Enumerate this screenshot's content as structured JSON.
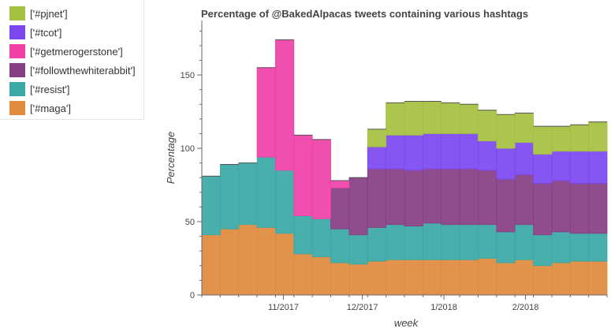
{
  "chart_data": {
    "type": "area",
    "title": "Percentage of @BakedAlpacas tweets containing various hashtags",
    "xlabel": "week",
    "ylabel": "Percentage",
    "ylim": [
      0,
      185
    ],
    "yticks": [
      0,
      50,
      100,
      150
    ],
    "xtick_labels": [
      "11/2017",
      "12/2017",
      "1/2018",
      "2/2018"
    ],
    "legend_position": "top-left",
    "stacked": true,
    "step": true,
    "x_week_starts": [
      "2017-10-01",
      "2017-10-08",
      "2017-10-15",
      "2017-10-22",
      "2017-10-29",
      "2017-11-05",
      "2017-11-12",
      "2017-11-19",
      "2017-11-26",
      "2017-12-03",
      "2017-12-10",
      "2017-12-17",
      "2017-12-24",
      "2017-12-31",
      "2018-01-07",
      "2018-01-14",
      "2018-01-21",
      "2018-01-28",
      "2018-02-04",
      "2018-02-11",
      "2018-02-18",
      "2018-02-25"
    ],
    "series": [
      {
        "name": "['#maga']",
        "color": "#e08a3c",
        "values": [
          41,
          45,
          48,
          46,
          42,
          28,
          26,
          22,
          21,
          23,
          24,
          24,
          24,
          24,
          24,
          25,
          22,
          24,
          20,
          22,
          23,
          23
        ]
      },
      {
        "name": "['#resist']",
        "color": "#3aa8a6",
        "values": [
          40,
          44,
          42,
          48,
          43,
          26,
          26,
          23,
          20,
          23,
          24,
          23,
          25,
          24,
          24,
          23,
          21,
          24,
          21,
          21,
          19,
          19
        ]
      },
      {
        "name": "['#followthewhiterabbit']",
        "color": "#863e84",
        "values": [
          0,
          0,
          0,
          0,
          0,
          0,
          0,
          28,
          39,
          40,
          38,
          38,
          37,
          38,
          38,
          37,
          36,
          34,
          35,
          35,
          34,
          34
        ]
      },
      {
        "name": "['#getmerogerstone']",
        "color": "#f040a8",
        "values": [
          0,
          0,
          0,
          61,
          89,
          55,
          54,
          5,
          0,
          0,
          0,
          0,
          0,
          0,
          0,
          0,
          0,
          0,
          0,
          0,
          0,
          0
        ]
      },
      {
        "name": "['#tcot']",
        "color": "#7b48f0",
        "values": [
          0,
          0,
          0,
          0,
          0,
          0,
          0,
          0,
          0,
          15,
          23,
          24,
          24,
          24,
          24,
          20,
          21,
          22,
          20,
          20,
          22,
          22
        ]
      },
      {
        "name": "['#pjnet']",
        "color": "#a4c040",
        "values": [
          0,
          0,
          0,
          0,
          0,
          0,
          0,
          0,
          0,
          12,
          22,
          23,
          22,
          21,
          20,
          21,
          23,
          20,
          19,
          17,
          18,
          20
        ]
      }
    ],
    "legend_order": [
      "['#pjnet']",
      "['#tcot']",
      "['#getmerogerstone']",
      "['#followthewhiterabbit']",
      "['#resist']",
      "['#maga']"
    ]
  }
}
